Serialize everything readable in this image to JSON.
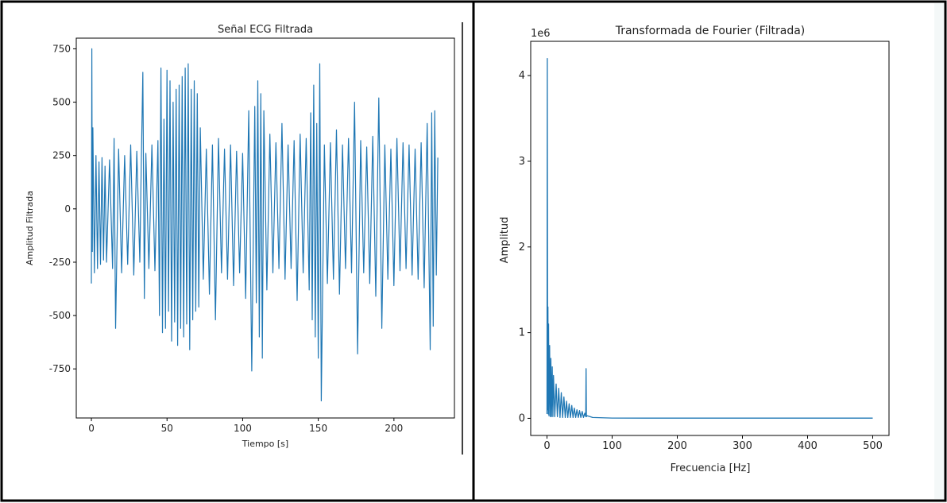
{
  "chart_data": [
    {
      "type": "line",
      "title": "Señal ECG Filtrada",
      "xlabel": "Tiempo [s]",
      "ylabel": "Amplitud Filtrada",
      "xlim": [
        -10,
        240
      ],
      "ylim": [
        -980,
        800
      ],
      "xticks": [
        0,
        50,
        100,
        150,
        200
      ],
      "yticks": [
        -750,
        -500,
        -250,
        0,
        250,
        500,
        750
      ],
      "color": "#1f77b4",
      "grid": false,
      "series": [
        {
          "x": [
            0,
            0.3,
            0.6,
            1,
            2,
            3,
            4,
            5,
            6,
            7,
            8,
            9,
            10,
            12,
            14,
            15,
            16,
            18,
            20,
            22,
            24,
            26,
            28,
            30,
            32,
            33,
            34,
            35,
            36,
            38,
            40,
            42,
            44,
            45,
            46,
            47,
            48,
            49,
            50,
            51,
            52,
            53,
            54,
            55,
            56,
            57,
            58,
            59,
            60,
            61,
            62,
            63,
            64,
            65,
            66,
            67,
            68,
            69,
            70,
            71,
            72,
            74,
            76,
            78,
            80,
            82,
            84,
            86,
            88,
            90,
            92,
            94,
            96,
            98,
            100,
            102,
            104,
            106,
            108,
            109,
            110,
            111,
            112,
            113,
            114,
            116,
            118,
            120,
            122,
            124,
            126,
            128,
            130,
            132,
            134,
            136,
            138,
            140,
            142,
            144,
            145,
            146,
            147,
            148,
            149,
            150,
            151,
            152,
            154,
            156,
            158,
            160,
            162,
            164,
            166,
            168,
            170,
            172,
            174,
            176,
            178,
            180,
            182,
            184,
            186,
            188,
            190,
            192,
            194,
            196,
            198,
            200,
            202,
            204,
            206,
            208,
            210,
            212,
            214,
            216,
            218,
            220,
            222,
            224,
            225,
            226,
            227,
            228,
            229
          ],
          "y": [
            -350,
            750,
            -200,
            380,
            -300,
            250,
            -280,
            220,
            -260,
            240,
            -240,
            200,
            -250,
            230,
            -280,
            330,
            -560,
            280,
            -300,
            250,
            -260,
            300,
            -310,
            270,
            -250,
            230,
            640,
            -420,
            260,
            -280,
            300,
            -290,
            320,
            -500,
            660,
            -580,
            420,
            -560,
            650,
            -480,
            600,
            -620,
            500,
            -530,
            560,
            -640,
            580,
            -560,
            620,
            -600,
            660,
            -540,
            680,
            -660,
            560,
            -520,
            600,
            -480,
            540,
            -460,
            380,
            -330,
            280,
            -400,
            300,
            -520,
            330,
            -300,
            280,
            -330,
            300,
            -360,
            270,
            -300,
            260,
            -420,
            460,
            -760,
            480,
            -440,
            600,
            -600,
            540,
            -700,
            460,
            -380,
            350,
            -300,
            310,
            -280,
            400,
            -330,
            300,
            -280,
            320,
            -430,
            350,
            -300,
            330,
            -380,
            450,
            -520,
            580,
            -600,
            400,
            -700,
            680,
            -900,
            300,
            -350,
            310,
            -330,
            370,
            -400,
            300,
            -280,
            330,
            -300,
            500,
            -680,
            320,
            -300,
            290,
            -350,
            340,
            -410,
            520,
            -560,
            300,
            -330,
            280,
            -360,
            330,
            -290,
            310,
            -280,
            300,
            -310,
            280,
            -330,
            310,
            -370,
            400,
            -660,
            450,
            -550,
            460,
            -310,
            240
          ]
        }
      ]
    },
    {
      "type": "line",
      "title": "Transformada de Fourier  (Filtrada)",
      "xlabel": "Frecuencia [Hz]",
      "ylabel": "Amplitud",
      "scale_label": "1e6",
      "xlim": [
        -25,
        525
      ],
      "ylim": [
        -0.2,
        4.4
      ],
      "xticks": [
        0,
        100,
        200,
        300,
        400,
        500
      ],
      "yticks": [
        0,
        1,
        2,
        3,
        4
      ],
      "color": "#1f77b4",
      "grid": false,
      "series": [
        {
          "x": [
            0,
            0.5,
            1,
            1.5,
            2,
            2.5,
            3,
            4,
            5,
            6,
            7,
            8,
            9,
            10,
            12,
            14,
            16,
            18,
            20,
            22,
            24,
            26,
            28,
            30,
            32,
            34,
            36,
            38,
            40,
            42,
            44,
            46,
            48,
            50,
            52,
            54,
            56,
            58,
            59.5,
            60,
            60.5,
            62,
            66,
            70,
            80,
            90,
            100,
            150,
            200,
            300,
            400,
            500
          ],
          "y": [
            0.05,
            4.2,
            0.1,
            1.3,
            0.05,
            1.1,
            0.03,
            0.85,
            0.02,
            0.7,
            0.02,
            0.6,
            0.02,
            0.5,
            0.02,
            0.4,
            0.02,
            0.35,
            0.01,
            0.3,
            0.01,
            0.25,
            0.01,
            0.2,
            0.01,
            0.17,
            0.01,
            0.15,
            0.01,
            0.12,
            0.01,
            0.1,
            0.01,
            0.09,
            0.01,
            0.08,
            0.01,
            0.06,
            0.02,
            0.58,
            0.02,
            0.03,
            0.02,
            0.01,
            0.008,
            0.005,
            0.003,
            0.002,
            0.002,
            0.002,
            0.002,
            0.002
          ]
        }
      ]
    }
  ]
}
